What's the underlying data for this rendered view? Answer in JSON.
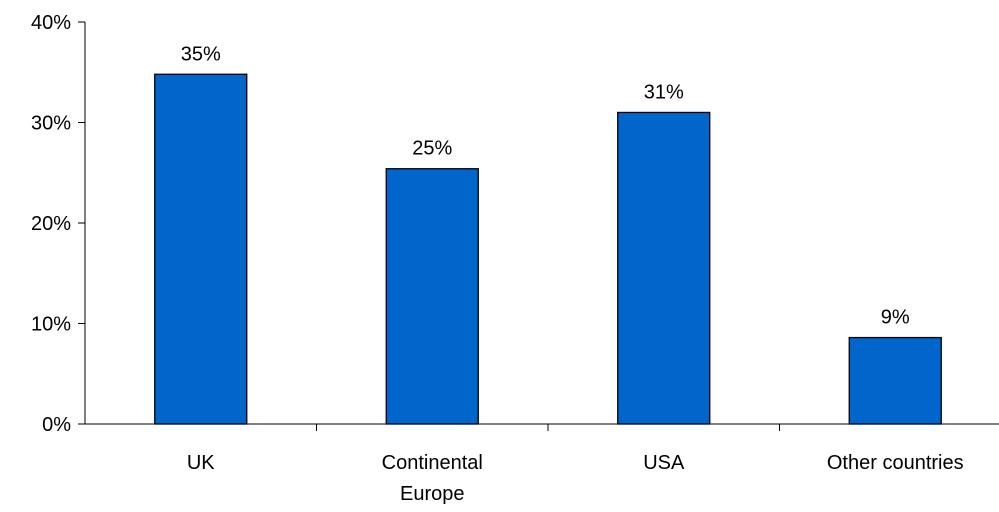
{
  "chart_data": {
    "type": "bar",
    "categories": [
      [
        "UK"
      ],
      [
        "Continental",
        "Europe"
      ],
      [
        "USA"
      ],
      [
        "Other countries"
      ]
    ],
    "values": [
      34.8,
      25.4,
      31.0,
      8.6
    ],
    "data_labels": [
      "35%",
      "25%",
      "31%",
      "9%"
    ],
    "ylim": [
      0,
      40
    ],
    "yticks": [
      0,
      10,
      20,
      30,
      40
    ],
    "ytick_labels": [
      "0%",
      "10%",
      "20%",
      "30%",
      "40%"
    ],
    "title": "",
    "xlabel": "",
    "ylabel": "",
    "grid": false,
    "legend": "none",
    "colors": {
      "bar_fill": "#0066CC",
      "bar_stroke": "#000000",
      "axis": "#000000",
      "text": "#000000"
    }
  }
}
